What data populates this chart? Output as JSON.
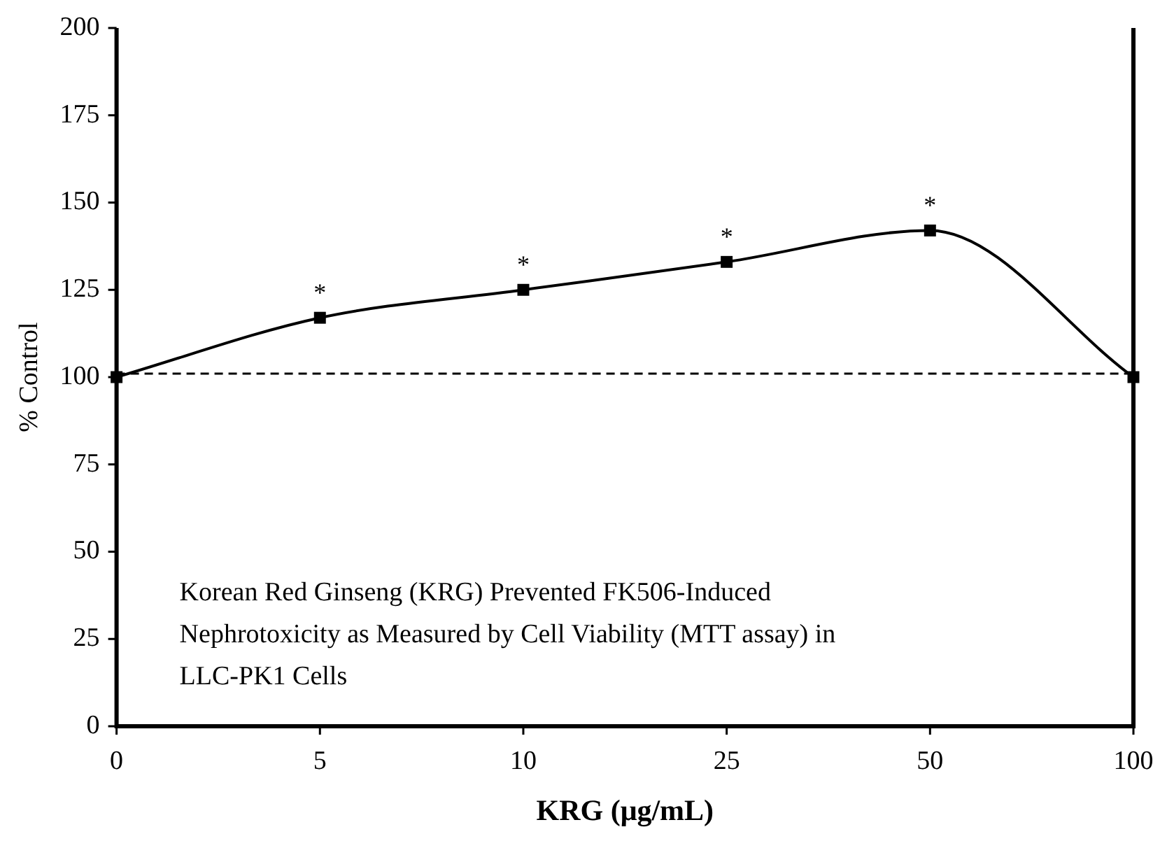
{
  "chart_data": {
    "type": "line",
    "xlabel": "KRG (μg/mL)",
    "ylabel": "% Control",
    "categories": [
      "0",
      "5",
      "10",
      "25",
      "50",
      "100"
    ],
    "series": [
      {
        "color": "#000000",
        "values": [
          100,
          117,
          125,
          133,
          142,
          100
        ]
      }
    ],
    "ylim": [
      0,
      200
    ],
    "yticks": [
      0,
      25,
      50,
      75,
      100,
      125,
      150,
      175,
      200
    ],
    "marker": "square",
    "line_style": "solid",
    "grid": false,
    "legend": false,
    "ref_lines": [
      {
        "axis": "y",
        "value": 101,
        "line_style": "dashed",
        "color": "#000000"
      }
    ],
    "annotations": [
      {
        "text": "*",
        "x": "5",
        "y": 117
      },
      {
        "text": "*",
        "x": "10",
        "y": 125
      },
      {
        "text": "*",
        "x": "25",
        "y": 133
      },
      {
        "text": "*",
        "x": "50",
        "y": 142
      },
      "Korean Red Ginseng (KRG) Prevented FK506-Induced Nephrotoxicity as Measured by Cell Viability (MTT assay) in LLC-PK1 Cells"
    ]
  }
}
